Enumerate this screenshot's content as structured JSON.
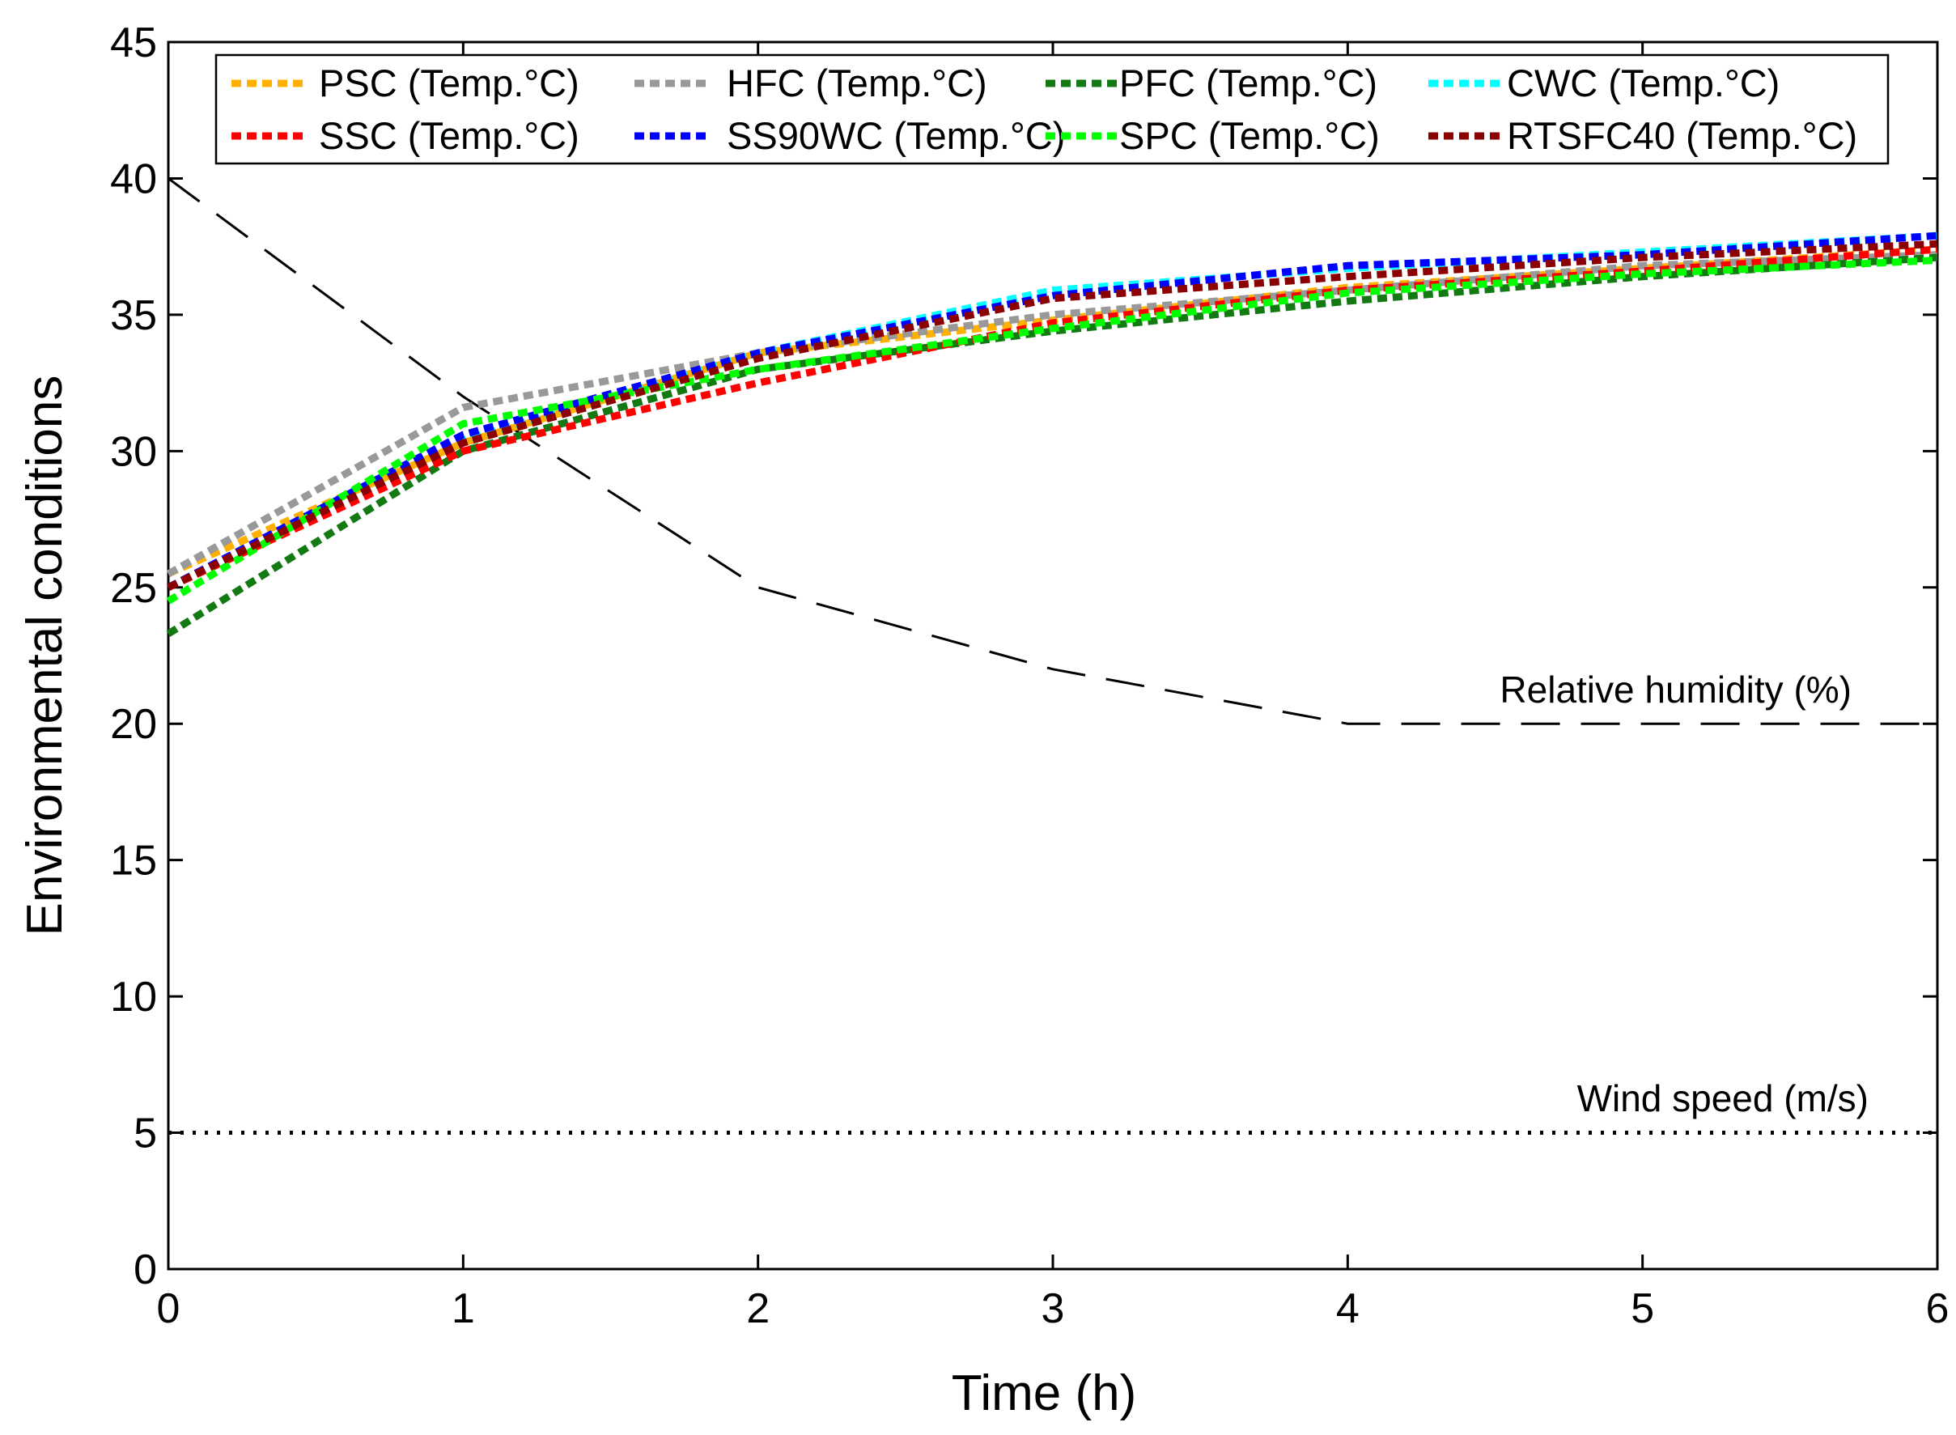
{
  "chart_data": {
    "type": "line",
    "title": "",
    "xlabel": "Time (h)",
    "ylabel": "Environmental conditions",
    "xlim": [
      0,
      6
    ],
    "ylim": [
      0,
      45
    ],
    "xticks": [
      0,
      1,
      2,
      3,
      4,
      5,
      6
    ],
    "yticks": [
      0,
      5,
      10,
      15,
      20,
      25,
      30,
      35,
      40,
      45
    ],
    "grid": false,
    "legend_position": "top",
    "x": [
      0,
      1,
      2,
      3,
      4,
      5,
      6
    ],
    "series": [
      {
        "name": "PSC (Temp.°C)",
        "color": "#ffb000",
        "values": [
          25.5,
          30.3,
          33.6,
          34.8,
          36.0,
          36.7,
          37.4
        ]
      },
      {
        "name": "HFC (Temp.°C)",
        "color": "#999999",
        "values": [
          25.5,
          31.6,
          33.6,
          35.0,
          35.9,
          36.8,
          37.2
        ]
      },
      {
        "name": "PFC (Temp.°C)",
        "color": "#137a13",
        "values": [
          23.3,
          30.0,
          33.0,
          34.4,
          35.5,
          36.4,
          37.1
        ]
      },
      {
        "name": "CWC (Temp.°C)",
        "color": "#00ffff",
        "values": [
          25.0,
          30.4,
          33.6,
          35.9,
          36.7,
          37.3,
          37.9
        ]
      },
      {
        "name": "SSC (Temp.°C)",
        "color": "#ff0000",
        "values": [
          25.0,
          30.0,
          32.5,
          34.7,
          35.9,
          36.6,
          37.4
        ]
      },
      {
        "name": "SS90WC (Temp.°C)",
        "color": "#0000ff",
        "values": [
          25.0,
          30.6,
          33.6,
          35.7,
          36.8,
          37.2,
          37.9
        ]
      },
      {
        "name": "SPC (Temp.°C)",
        "color": "#00ff00",
        "values": [
          24.5,
          31.0,
          33.0,
          34.5,
          35.8,
          36.5,
          37.0
        ]
      },
      {
        "name": "RTSFC40 (Temp.°C)",
        "color": "#8b0000",
        "values": [
          25.0,
          30.3,
          33.4,
          35.6,
          36.4,
          37.1,
          37.6
        ]
      },
      {
        "name": "Relative humidity (%)",
        "color": "#000000",
        "style": "dashed",
        "values": [
          40,
          32,
          25,
          22,
          20,
          20,
          20
        ]
      },
      {
        "name": "Wind speed (m/s)",
        "color": "#000000",
        "style": "dotted",
        "values": [
          5,
          5,
          5,
          5,
          5,
          5,
          5
        ]
      }
    ],
    "annotations": {
      "humidity": "Relative humidity (%)",
      "wind": "Wind speed (m/s)"
    }
  }
}
